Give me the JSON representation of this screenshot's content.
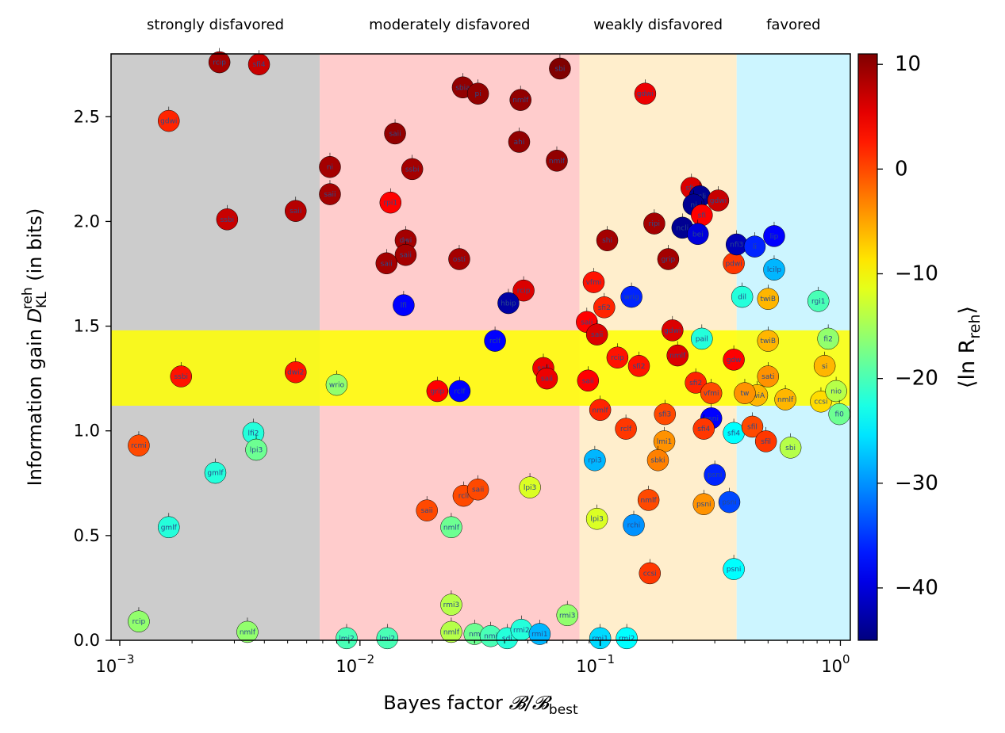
{
  "chart_data": {
    "type": "scatter",
    "xlabel": "Bayes factor",
    "xlabel_math": "𝓑/𝓑",
    "xlabel_sub": "best",
    "ylabel_prefix": "Information gain ",
    "ylabel_symbol": "D",
    "ylabel_sub": "KL",
    "ylabel_sup": "reh",
    "ylabel_suffix": " (in bits)",
    "x_scale": "log",
    "xlim": [
      0.00092,
      1.1
    ],
    "ylim": [
      0,
      2.8
    ],
    "x_ticks": [
      {
        "value": 0.001,
        "base": "10",
        "exp": "−3"
      },
      {
        "value": 0.01,
        "base": "10",
        "exp": "−2"
      },
      {
        "value": 0.1,
        "base": "10",
        "exp": "−1"
      },
      {
        "value": 1,
        "base": "10",
        "exp": "0"
      }
    ],
    "y_ticks": [
      {
        "value": 0.0,
        "label": "0.0"
      },
      {
        "value": 0.5,
        "label": "0.5"
      },
      {
        "value": 1.0,
        "label": "1.0"
      },
      {
        "value": 1.5,
        "label": "1.5"
      },
      {
        "value": 2.0,
        "label": "2.0"
      },
      {
        "value": 2.5,
        "label": "2.5"
      }
    ],
    "regions": [
      {
        "label": "strongly disfavored",
        "x_from": 0.00092,
        "x_to": 0.0068,
        "color": "#cccccc"
      },
      {
        "label": "moderately disfavored",
        "x_from": 0.0068,
        "x_to": 0.082,
        "color": "#ffcccc"
      },
      {
        "label": "weakly disfavored",
        "x_from": 0.082,
        "x_to": 0.37,
        "color": "#ffeecc"
      },
      {
        "label": "favored",
        "x_from": 0.37,
        "x_to": 1.1,
        "color": "#ccf5ff"
      }
    ],
    "band": {
      "y_from": 1.12,
      "y_to": 1.48,
      "color": "#ffff00"
    },
    "colorbar": {
      "label": "⟨ln R",
      "label_sub": "reh",
      "label_end": "⟩",
      "range": [
        -45,
        11
      ],
      "ticks": [
        {
          "value": 10,
          "label": "10"
        },
        {
          "value": 0,
          "label": "0"
        },
        {
          "value": -10,
          "label": "−10"
        },
        {
          "value": -20,
          "label": "−20"
        },
        {
          "value": -30,
          "label": "−30"
        },
        {
          "value": -40,
          "label": "−40"
        }
      ],
      "colormap": "jet"
    },
    "points": [
      {
        "x": 0.0026,
        "y": 2.76,
        "c": 9,
        "label": "rcip"
      },
      {
        "x": 0.0038,
        "y": 2.75,
        "c": 7,
        "label": "sfi4"
      },
      {
        "x": 0.0016,
        "y": 2.48,
        "c": 2,
        "label": "gdwi"
      },
      {
        "x": 0.0028,
        "y": 2.01,
        "c": 7,
        "label": "ssbi"
      },
      {
        "x": 0.0054,
        "y": 2.05,
        "c": 8,
        "label": "saii"
      },
      {
        "x": 0.0018,
        "y": 1.26,
        "c": 3,
        "label": "ssbi"
      },
      {
        "x": 0.0054,
        "y": 1.28,
        "c": 3,
        "label": "dwi2"
      },
      {
        "x": 0.0012,
        "y": 0.93,
        "c": 0,
        "label": "rcmi"
      },
      {
        "x": 0.0036,
        "y": 0.99,
        "c": -22,
        "label": "lfi2"
      },
      {
        "x": 0.0037,
        "y": 0.91,
        "c": -18,
        "label": "lpi3"
      },
      {
        "x": 0.0025,
        "y": 0.8,
        "c": -22,
        "label": "gmlf"
      },
      {
        "x": 0.0016,
        "y": 0.54,
        "c": -22,
        "label": "gmlf"
      },
      {
        "x": 0.0012,
        "y": 0.09,
        "c": -16,
        "label": "rcip"
      },
      {
        "x": 0.0034,
        "y": 0.04,
        "c": -16,
        "label": "nmlf"
      },
      {
        "x": 0.0075,
        "y": 2.26,
        "c": 9,
        "label": "ni"
      },
      {
        "x": 0.0075,
        "y": 2.13,
        "c": 9,
        "label": "saii"
      },
      {
        "x": 0.008,
        "y": 1.22,
        "c": -16,
        "label": "wrio"
      },
      {
        "x": 0.0088,
        "y": 0.01,
        "c": -20,
        "label": "lmi2"
      },
      {
        "x": 0.013,
        "y": 0.01,
        "c": -20,
        "label": "lmi2"
      },
      {
        "x": 0.014,
        "y": 2.42,
        "c": 10,
        "label": "saii"
      },
      {
        "x": 0.0165,
        "y": 2.25,
        "c": 9,
        "label": "ssbi"
      },
      {
        "x": 0.0134,
        "y": 2.09,
        "c": 4,
        "label": "rpi1"
      },
      {
        "x": 0.0155,
        "y": 1.91,
        "c": 9,
        "label": "dwi"
      },
      {
        "x": 0.0155,
        "y": 1.84,
        "c": 9,
        "label": "saii"
      },
      {
        "x": 0.0129,
        "y": 1.8,
        "c": 9,
        "label": "saii"
      },
      {
        "x": 0.0152,
        "y": 1.6,
        "c": -38,
        "label": "lfi"
      },
      {
        "x": 0.0259,
        "y": 1.82,
        "c": 9,
        "label": "osti"
      },
      {
        "x": 0.0268,
        "y": 2.64,
        "c": 10,
        "label": "sbia"
      },
      {
        "x": 0.031,
        "y": 2.61,
        "c": 10,
        "label": "pi"
      },
      {
        "x": 0.0466,
        "y": 2.58,
        "c": 10,
        "label": "nmlf"
      },
      {
        "x": 0.046,
        "y": 2.38,
        "c": 10,
        "label": "ahi"
      },
      {
        "x": 0.068,
        "y": 2.73,
        "c": 11,
        "label": "sbi"
      },
      {
        "x": 0.066,
        "y": 2.29,
        "c": 10,
        "label": "nmlf"
      },
      {
        "x": 0.048,
        "y": 1.67,
        "c": 6,
        "label": "rcip"
      },
      {
        "x": 0.0415,
        "y": 1.61,
        "c": -43,
        "label": "hbip"
      },
      {
        "x": 0.0365,
        "y": 1.43,
        "c": -38,
        "label": "rclf"
      },
      {
        "x": 0.021,
        "y": 1.19,
        "c": 4,
        "label": "grip"
      },
      {
        "x": 0.026,
        "y": 1.19,
        "c": -38,
        "label": "rclf"
      },
      {
        "x": 0.058,
        "y": 1.3,
        "c": 5,
        "label": "saii"
      },
      {
        "x": 0.06,
        "y": 1.25,
        "c": 5,
        "label": "saii"
      },
      {
        "x": 0.019,
        "y": 0.62,
        "c": 0,
        "label": "saii"
      },
      {
        "x": 0.027,
        "y": 0.69,
        "c": 0,
        "label": "rcli"
      },
      {
        "x": 0.031,
        "y": 0.72,
        "c": 0,
        "label": "saii"
      },
      {
        "x": 0.024,
        "y": 0.54,
        "c": -18,
        "label": "nmlf"
      },
      {
        "x": 0.051,
        "y": 0.73,
        "c": -12,
        "label": "lpi3"
      },
      {
        "x": 0.024,
        "y": 0.17,
        "c": -14,
        "label": "rmi3"
      },
      {
        "x": 0.024,
        "y": 0.04,
        "c": -14,
        "label": "nmlf"
      },
      {
        "x": 0.03,
        "y": 0.03,
        "c": -18,
        "label": "nm"
      },
      {
        "x": 0.035,
        "y": 0.02,
        "c": -20,
        "label": "nmi"
      },
      {
        "x": 0.041,
        "y": 0.01,
        "c": -22,
        "label": "sdi"
      },
      {
        "x": 0.047,
        "y": 0.05,
        "c": -22,
        "label": "rmi2"
      },
      {
        "x": 0.056,
        "y": 0.03,
        "c": -28,
        "label": "rmi1"
      },
      {
        "x": 0.073,
        "y": 0.12,
        "c": -16,
        "label": "rmi3"
      },
      {
        "x": 0.154,
        "y": 2.61,
        "c": 5,
        "label": "gdwi"
      },
      {
        "x": 0.107,
        "y": 1.91,
        "c": 9,
        "label": "shi"
      },
      {
        "x": 0.168,
        "y": 1.99,
        "c": 9,
        "label": "ripi"
      },
      {
        "x": 0.192,
        "y": 1.82,
        "c": 9,
        "label": "grip"
      },
      {
        "x": 0.094,
        "y": 1.71,
        "c": 3,
        "label": "vfmi"
      },
      {
        "x": 0.104,
        "y": 1.59,
        "c": 2,
        "label": "sfi2"
      },
      {
        "x": 0.135,
        "y": 1.64,
        "c": -36,
        "label": "wrig"
      },
      {
        "x": 0.088,
        "y": 1.52,
        "c": 4,
        "label": "saii"
      },
      {
        "x": 0.097,
        "y": 1.46,
        "c": 6,
        "label": "saii"
      },
      {
        "x": 0.118,
        "y": 1.35,
        "c": 3,
        "label": "rcip"
      },
      {
        "x": 0.145,
        "y": 1.31,
        "c": 3,
        "label": "sfi2"
      },
      {
        "x": 0.2,
        "y": 1.48,
        "c": 6,
        "label": "gdwi"
      },
      {
        "x": 0.21,
        "y": 1.36,
        "c": 6,
        "label": "nmlf"
      },
      {
        "x": 0.089,
        "y": 1.24,
        "c": 4,
        "label": "saii"
      },
      {
        "x": 0.1,
        "y": 1.1,
        "c": 2,
        "label": "nmlf"
      },
      {
        "x": 0.128,
        "y": 1.01,
        "c": 1,
        "label": "rclf"
      },
      {
        "x": 0.186,
        "y": 1.08,
        "c": 0,
        "label": "sfi3"
      },
      {
        "x": 0.185,
        "y": 0.95,
        "c": -4,
        "label": "lmi1"
      },
      {
        "x": 0.174,
        "y": 0.86,
        "c": -3,
        "label": "sbki"
      },
      {
        "x": 0.159,
        "y": 0.67,
        "c": 0,
        "label": "nmlf"
      },
      {
        "x": 0.095,
        "y": 0.86,
        "c": -28,
        "label": "rpi3"
      },
      {
        "x": 0.097,
        "y": 0.58,
        "c": -12,
        "label": "lpi3"
      },
      {
        "x": 0.138,
        "y": 0.55,
        "c": -30,
        "label": "rchi"
      },
      {
        "x": 0.161,
        "y": 0.32,
        "c": 1,
        "label": "ccsi"
      },
      {
        "x": 0.1,
        "y": 0.01,
        "c": -26,
        "label": "rmi1"
      },
      {
        "x": 0.129,
        "y": 0.01,
        "c": -24,
        "label": "rmi2"
      },
      {
        "x": 0.24,
        "y": 2.16,
        "c": 6,
        "label": "sfis"
      },
      {
        "x": 0.26,
        "y": 2.12,
        "c": -44,
        "label": "ncli"
      },
      {
        "x": 0.245,
        "y": 2.08,
        "c": -44,
        "label": "ni"
      },
      {
        "x": 0.265,
        "y": 2.03,
        "c": 4,
        "label": "sfi"
      },
      {
        "x": 0.22,
        "y": 1.97,
        "c": -44,
        "label": "ncli"
      },
      {
        "x": 0.255,
        "y": 1.94,
        "c": -40,
        "label": "bei"
      },
      {
        "x": 0.31,
        "y": 2.1,
        "c": 7,
        "label": "gdwi"
      },
      {
        "x": 0.265,
        "y": 1.44,
        "c": -22,
        "label": "pail"
      },
      {
        "x": 0.25,
        "y": 1.23,
        "c": 2,
        "label": "sfi2"
      },
      {
        "x": 0.29,
        "y": 1.18,
        "c": 0,
        "label": "vfmi"
      },
      {
        "x": 0.29,
        "y": 1.06,
        "c": -38,
        "label": "psni"
      },
      {
        "x": 0.27,
        "y": 1.01,
        "c": 1,
        "label": "sfi4"
      },
      {
        "x": 0.3,
        "y": 0.79,
        "c": -36,
        "label": "psni"
      },
      {
        "x": 0.27,
        "y": 0.65,
        "c": -4,
        "label": "psni"
      },
      {
        "x": 0.345,
        "y": 0.66,
        "c": -34,
        "label": "psni"
      },
      {
        "x": 0.36,
        "y": 0.34,
        "c": -24,
        "label": "psni"
      },
      {
        "x": 0.36,
        "y": 1.8,
        "c": 1,
        "label": "pdwi"
      },
      {
        "x": 0.37,
        "y": 1.89,
        "c": -42,
        "label": "nfi3"
      },
      {
        "x": 0.44,
        "y": 1.88,
        "c": -36,
        "label": "li"
      },
      {
        "x": 0.53,
        "y": 1.93,
        "c": -38,
        "label": "lip"
      },
      {
        "x": 0.53,
        "y": 1.77,
        "c": -28,
        "label": "lcilp"
      },
      {
        "x": 0.39,
        "y": 1.64,
        "c": -22,
        "label": "dil"
      },
      {
        "x": 0.5,
        "y": 1.63,
        "c": -6,
        "label": "twiB"
      },
      {
        "x": 0.81,
        "y": 1.62,
        "c": -20,
        "label": "rgi1"
      },
      {
        "x": 0.36,
        "y": 1.34,
        "c": 4,
        "label": "gdw"
      },
      {
        "x": 0.5,
        "y": 1.43,
        "c": -6,
        "label": "twiB"
      },
      {
        "x": 0.89,
        "y": 1.44,
        "c": -16,
        "label": "fi2"
      },
      {
        "x": 0.5,
        "y": 1.26,
        "c": -4,
        "label": "sati"
      },
      {
        "x": 0.59,
        "y": 1.15,
        "c": -6,
        "label": "nmlf"
      },
      {
        "x": 0.86,
        "y": 1.31,
        "c": -6,
        "label": "si"
      },
      {
        "x": 0.83,
        "y": 1.14,
        "c": -8,
        "label": "ccsi"
      },
      {
        "x": 0.96,
        "y": 1.19,
        "c": -14,
        "label": "nio"
      },
      {
        "x": 0.99,
        "y": 1.08,
        "c": -18,
        "label": "fi0"
      },
      {
        "x": 0.45,
        "y": 1.17,
        "c": -6,
        "label": "twiA"
      },
      {
        "x": 0.4,
        "y": 1.18,
        "c": -4,
        "label": "tw"
      },
      {
        "x": 0.36,
        "y": 0.99,
        "c": -24,
        "label": "sfi4"
      },
      {
        "x": 0.43,
        "y": 1.02,
        "c": 0,
        "label": "sfil"
      },
      {
        "x": 0.49,
        "y": 0.95,
        "c": 1,
        "label": "sfil"
      },
      {
        "x": 0.62,
        "y": 0.92,
        "c": -14,
        "label": "sbi"
      }
    ]
  }
}
